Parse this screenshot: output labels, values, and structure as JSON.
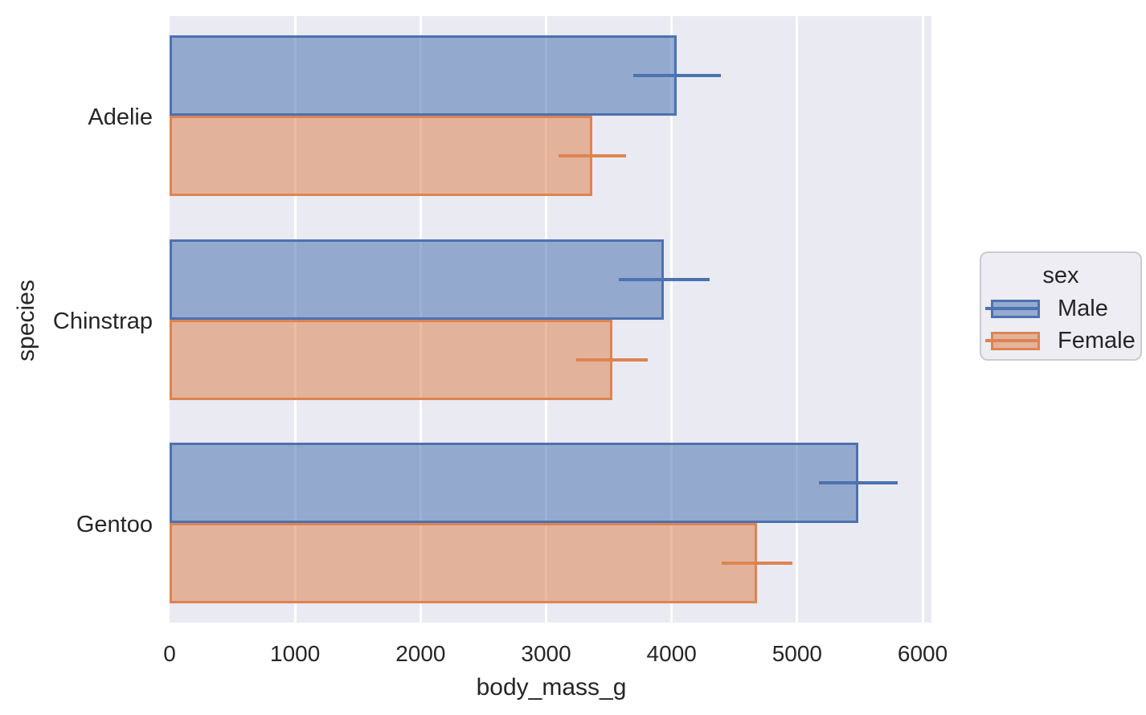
{
  "text_color": "#262626",
  "chart_data": {
    "type": "bar",
    "orientation": "horizontal",
    "title": "",
    "xlabel": "body_mass_g",
    "ylabel": "species",
    "categories": [
      "Adelie",
      "Chinstrap",
      "Gentoo"
    ],
    "series": [
      {
        "name": "Male",
        "edge_color": "#4c72b0",
        "fill_color": "rgba(76,114,176,0.55)",
        "values": [
          4043,
          3939,
          5485
        ],
        "error_sd": [
          347,
          362,
          313
        ]
      },
      {
        "name": "Female",
        "edge_color": "#dd8452",
        "fill_color": "rgba(221,132,82,0.55)",
        "values": [
          3369,
          3527,
          4680
        ],
        "error_sd": [
          269,
          285,
          282
        ]
      }
    ],
    "errorbar": "sd",
    "xticks": [
      0,
      1000,
      2000,
      3000,
      4000,
      5000,
      6000
    ],
    "xtick_labels": [
      "0",
      "1000",
      "2000",
      "3000",
      "4000",
      "5000",
      "6000"
    ],
    "xlim": [
      0,
      6070
    ],
    "grid": true,
    "plot_bg_color": "#eaeaf2",
    "grid_color": "#ffffff",
    "legend": {
      "title": "sex",
      "entries": [
        "Male",
        "Female"
      ],
      "position": "outside-right"
    }
  }
}
